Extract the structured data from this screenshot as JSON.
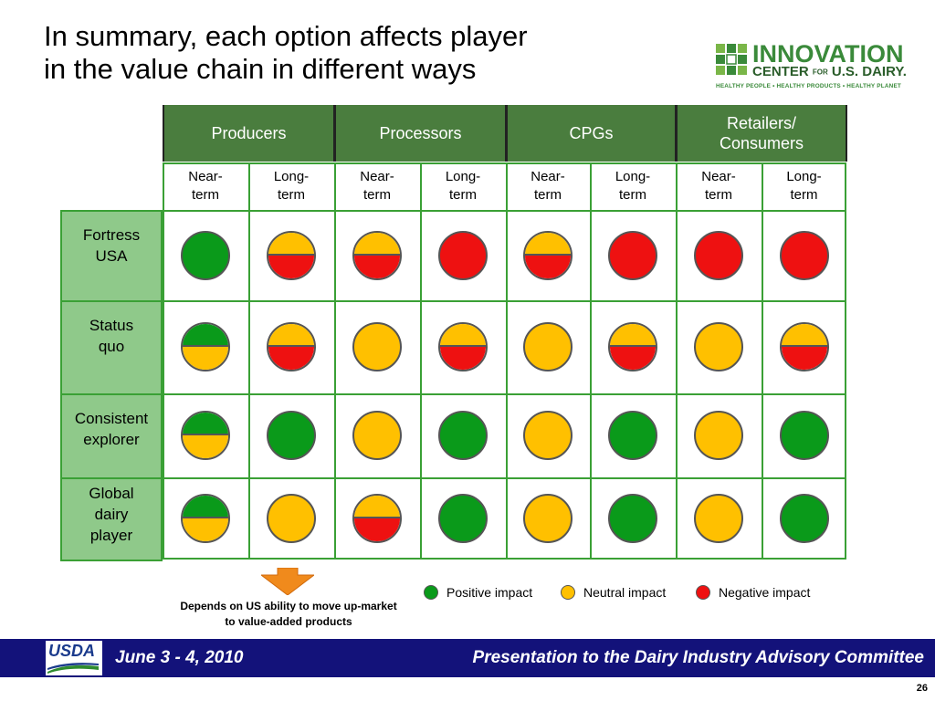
{
  "title": {
    "line1": "In summary, each option affects player",
    "line2": "in the value chain in different ways"
  },
  "logo": {
    "line1": "INNOVATION",
    "line2_a": "CENTER",
    "line2_for": "FOR",
    "line2_b": "U.S. DAIRY.",
    "tagline": "HEALTHY PEOPLE • HEALTHY PRODUCTS • HEALTHY PLANET"
  },
  "colors": {
    "header_green": "#4a7d3e",
    "row_label_green": "#8fc98a",
    "grid_line": "#3aa035",
    "positive": "#0a9a1a",
    "neutral": "#ffc000",
    "negative": "#ee1111",
    "footer_navy": "#13127a"
  },
  "columns": [
    {
      "label": "Producers"
    },
    {
      "label": "Processors"
    },
    {
      "label": "CPGs"
    },
    {
      "label": "Retailers/\nConsumers"
    }
  ],
  "subcolumns": [
    "Near-\nterm",
    "Long-\nterm",
    "Near-\nterm",
    "Long-\nterm",
    "Near-\nterm",
    "Long-\nterm",
    "Near-\nterm",
    "Long-\nterm"
  ],
  "rows": [
    {
      "label": "Fortress\nUSA",
      "cells": [
        "positive",
        "neutral/negative",
        "neutral/negative",
        "negative",
        "neutral/negative",
        "negative",
        "negative",
        "negative"
      ]
    },
    {
      "label": "Status\nquo",
      "cells": [
        "positive/neutral",
        "neutral/negative",
        "neutral",
        "neutral/negative",
        "neutral",
        "neutral/negative",
        "neutral",
        "neutral/negative"
      ]
    },
    {
      "label": "Consistent\nexplorer",
      "cells": [
        "positive/neutral",
        "positive",
        "neutral",
        "positive",
        "neutral",
        "positive",
        "neutral",
        "positive"
      ]
    },
    {
      "label": "Global\ndairy\nplayer",
      "cells": [
        "positive/neutral",
        "neutral",
        "neutral/negative",
        "positive",
        "neutral",
        "positive",
        "neutral",
        "positive"
      ]
    }
  ],
  "note": "Depends on US ability to move up-market to value-added products",
  "legend": [
    {
      "label": "Positive impact",
      "status": "positive"
    },
    {
      "label": "Neutral impact",
      "status": "neutral"
    },
    {
      "label": "Negative impact",
      "status": "negative"
    }
  ],
  "footer": {
    "usda": "USDA",
    "date": "June 3 - 4, 2010",
    "title": "Presentation to the Dairy Industry Advisory Committee"
  },
  "page_number": "26"
}
